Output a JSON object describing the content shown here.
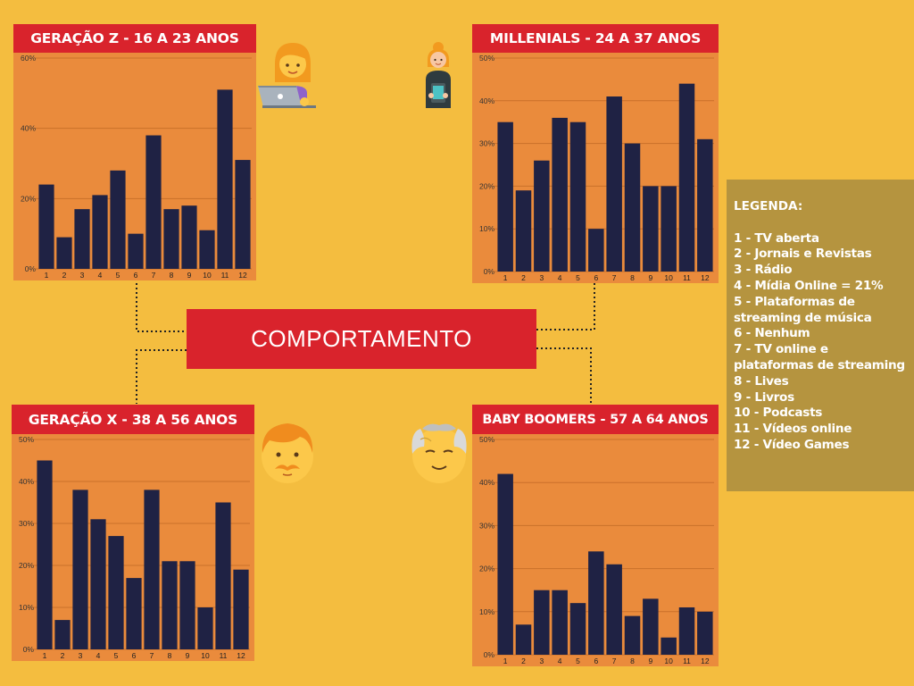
{
  "center_label": "COMPORTAMENTO",
  "legend": {
    "title": "LEGENDA:",
    "items": [
      "1 - TV aberta",
      "2 - Jornais e Revistas",
      "3 - Rádio",
      "4 - Mídia Online = 21%",
      "5 - Plataformas de streaming de música",
      "6 - Nenhum",
      "7 - TV online e plataformas de streaming",
      "8 - Lives",
      "9 - Livros",
      "10 - Podcasts",
      "11 - Vídeos online",
      "12 - Vídeo Games"
    ]
  },
  "colors": {
    "background": "#f4bd3f",
    "title_bar": "#d9232c",
    "plot_bg": "#ea8b3c",
    "bar": "#1f2244",
    "legend_bg": "#b5943f"
  },
  "chart_data": [
    {
      "type": "bar",
      "title": "GERAÇÃO Z - 16 A 23 ANOS",
      "categories": [
        "1",
        "2",
        "3",
        "4",
        "5",
        "6",
        "7",
        "8",
        "9",
        "10",
        "11",
        "12"
      ],
      "values": [
        24,
        9,
        17,
        21,
        28,
        10,
        38,
        17,
        18,
        11,
        51,
        31
      ],
      "ylim": [
        0,
        60
      ],
      "yticks": [
        "0%",
        "20%",
        "40%",
        "60%"
      ],
      "xlabel": "",
      "ylabel": "",
      "grid": true
    },
    {
      "type": "bar",
      "title": "MILLENIALS - 24 A 37 ANOS",
      "categories": [
        "1",
        "2",
        "3",
        "4",
        "5",
        "6",
        "7",
        "8",
        "9",
        "10",
        "11",
        "12"
      ],
      "values": [
        35,
        19,
        26,
        36,
        35,
        10,
        41,
        30,
        20,
        20,
        44,
        31
      ],
      "ylim": [
        0,
        50
      ],
      "yticks": [
        "0%",
        "10%",
        "20%",
        "30%",
        "40%",
        "50%"
      ],
      "xlabel": "",
      "ylabel": "",
      "grid": true
    },
    {
      "type": "bar",
      "title": "GERAÇÃO X - 38 A 56 ANOS",
      "categories": [
        "1",
        "2",
        "3",
        "4",
        "5",
        "6",
        "7",
        "8",
        "9",
        "10",
        "11",
        "12"
      ],
      "values": [
        45,
        7,
        38,
        31,
        27,
        17,
        38,
        21,
        21,
        10,
        35,
        19
      ],
      "ylim": [
        0,
        50
      ],
      "yticks": [
        "0%",
        "10%",
        "20%",
        "30%",
        "40%",
        "50%"
      ],
      "xlabel": "",
      "ylabel": "",
      "grid": true
    },
    {
      "type": "bar",
      "title": "BABY BOOMERS - 57 A 64 ANOS",
      "categories": [
        "1",
        "2",
        "3",
        "4",
        "5",
        "6",
        "7",
        "8",
        "9",
        "10",
        "11",
        "12"
      ],
      "values": [
        42,
        7,
        15,
        15,
        12,
        24,
        21,
        9,
        13,
        4,
        11,
        10
      ],
      "ylim": [
        0,
        50
      ],
      "yticks": [
        "0%",
        "10%",
        "20%",
        "30%",
        "40%",
        "50%"
      ],
      "xlabel": "",
      "ylabel": "",
      "grid": true
    }
  ]
}
